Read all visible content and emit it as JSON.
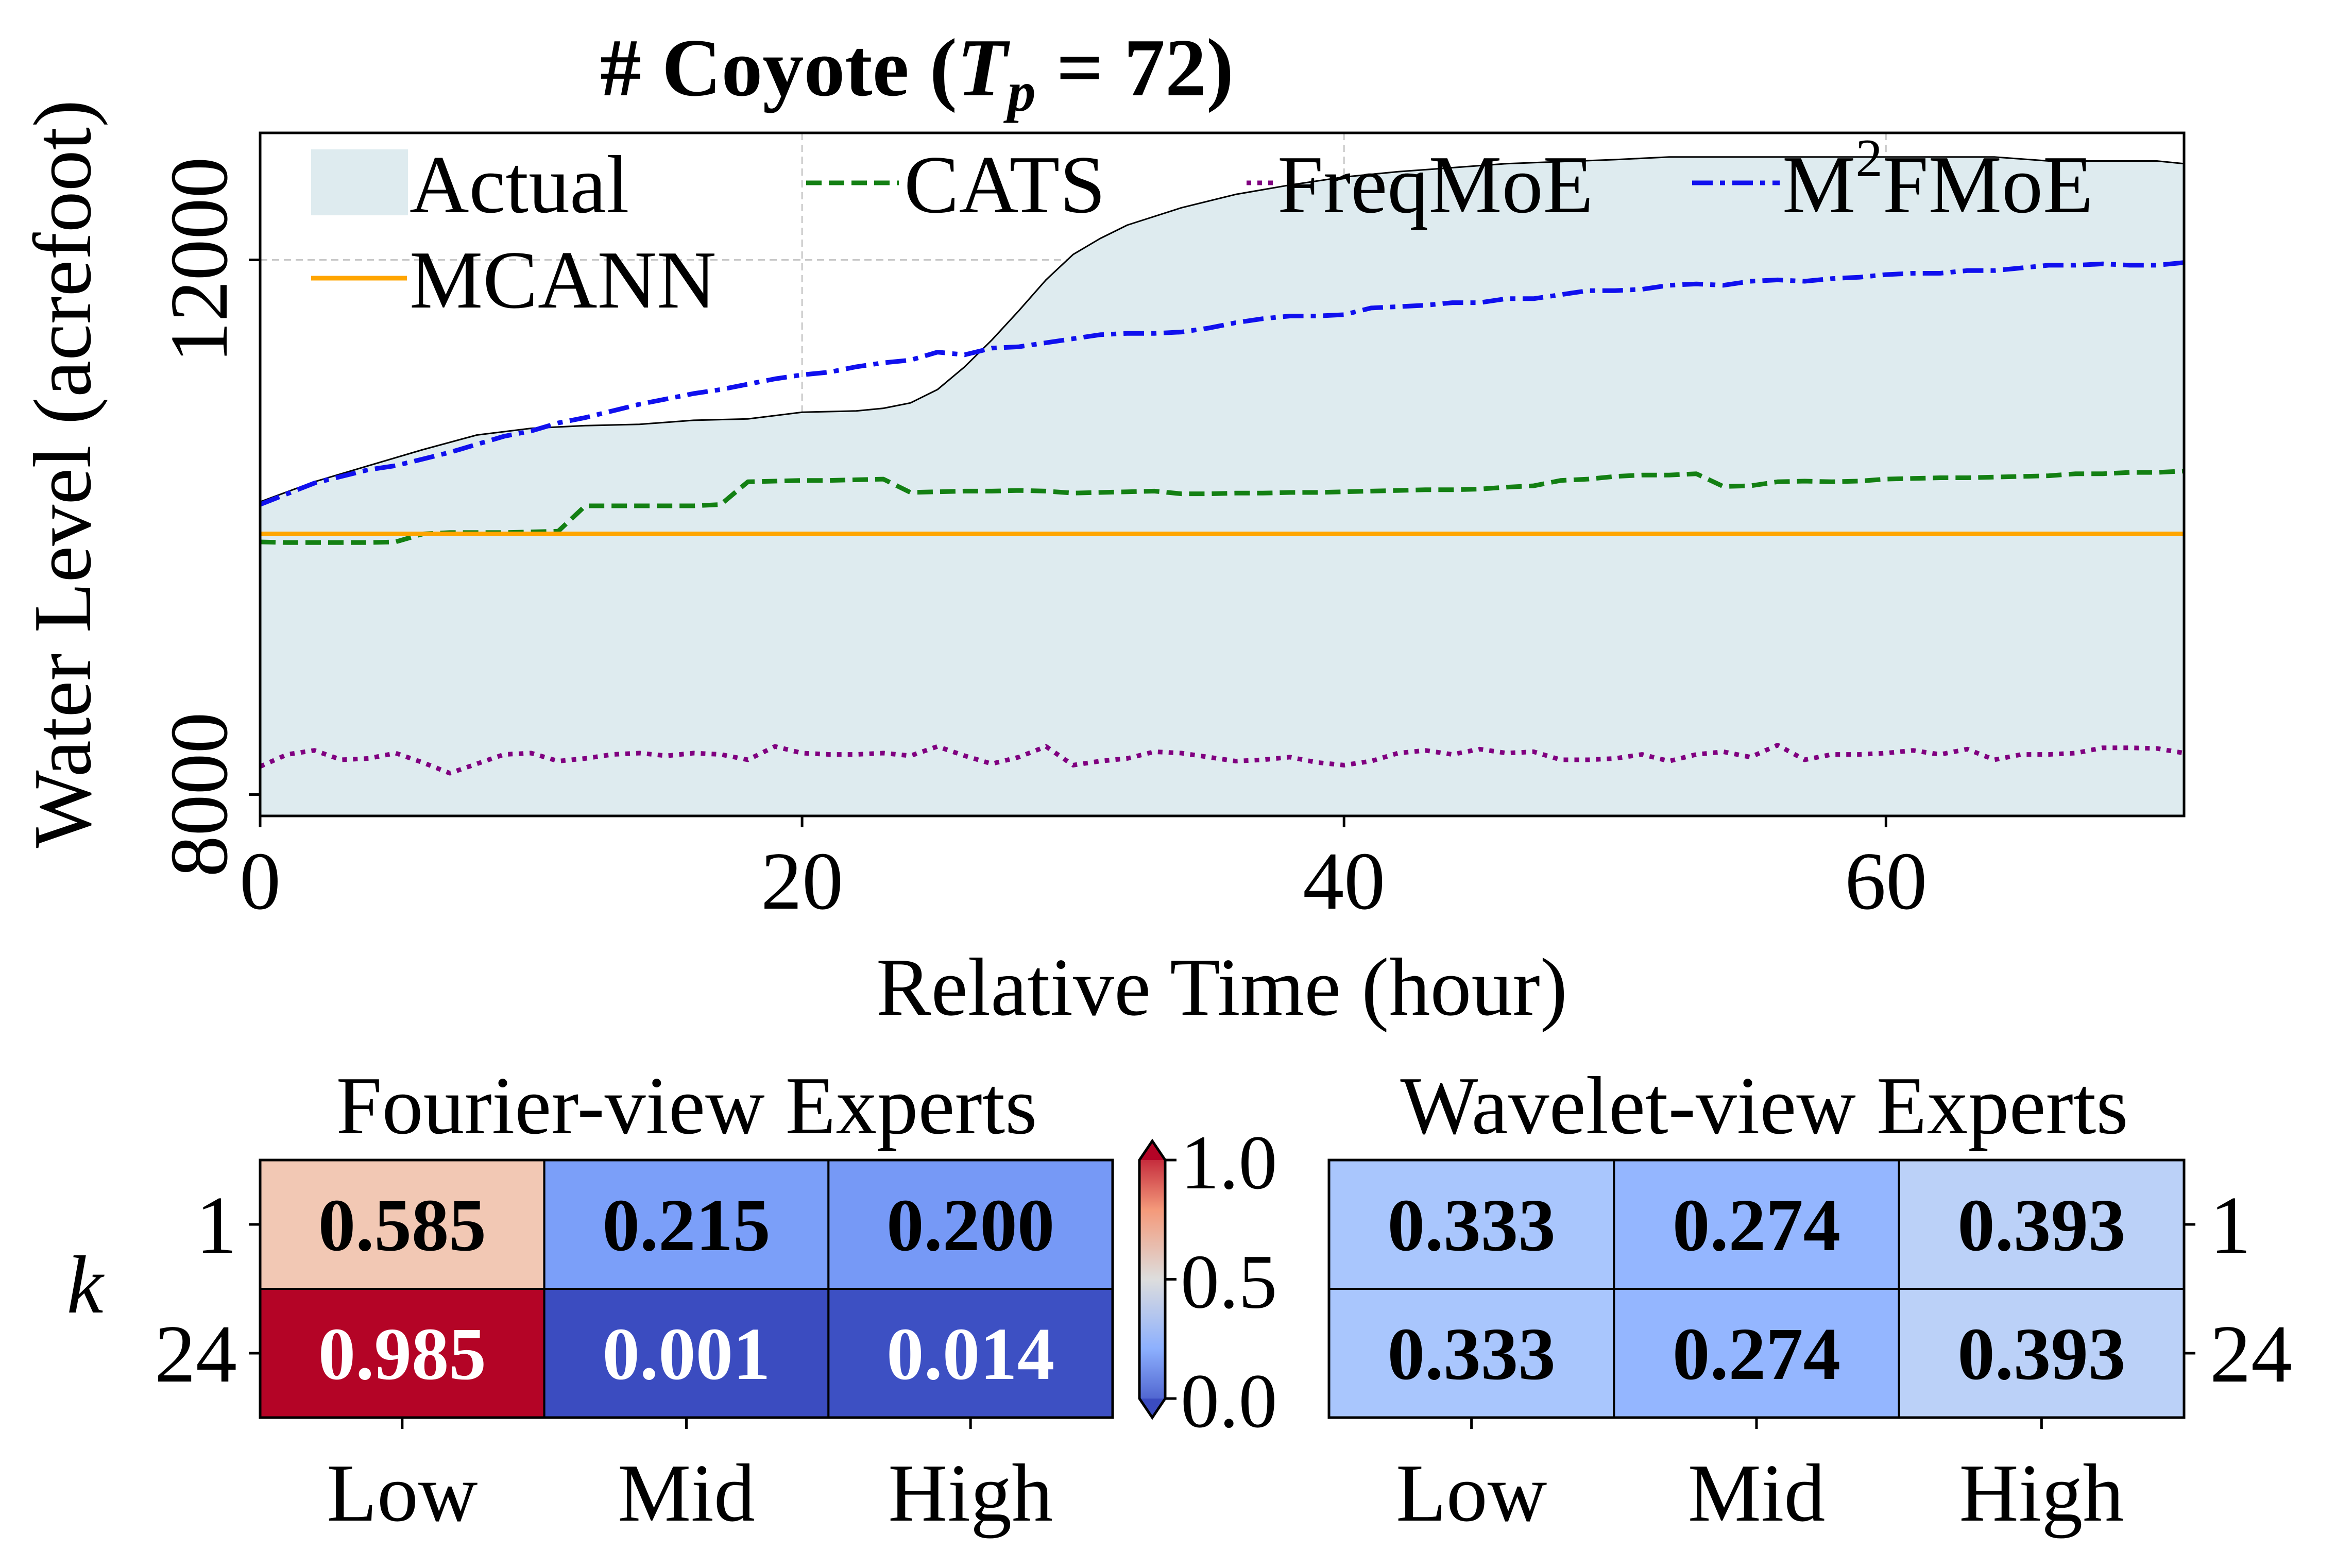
{
  "chart_data": [
    {
      "type": "line",
      "title_prefix": "# Coyote (",
      "title_T": "T",
      "title_sub": "p",
      "title_suffix": " = 72)",
      "xlabel": "Relative Time (hour)",
      "ylabel": "Water Level (acrefoot)",
      "xlim": [
        0,
        71
      ],
      "ylim": [
        7840,
        12950
      ],
      "xticks": [
        0,
        20,
        40,
        60
      ],
      "yticks": [
        8000,
        12000
      ],
      "grid": true,
      "legend_position": "top-left",
      "legend": [
        {
          "name": "Actual",
          "style": "area",
          "color": "#deebef"
        },
        {
          "name": "CATS",
          "style": "dashed",
          "color": "#138013"
        },
        {
          "name": "FreqMoE",
          "style": "dotted",
          "color": "#800080"
        },
        {
          "name": "M",
          "sup": "2",
          "name_tail": "FMoE",
          "style": "dashdot",
          "color": "#1010ee"
        },
        {
          "name": "MCANN",
          "style": "solid",
          "color": "#ffa500"
        }
      ],
      "series": [
        {
          "name": "Actual",
          "x": [
            0,
            2,
            4,
            6,
            8,
            10,
            12,
            14,
            16,
            18,
            20,
            22,
            23,
            24,
            25,
            26,
            27,
            28,
            29,
            30,
            31,
            32,
            34,
            36,
            38,
            40,
            42,
            44,
            46,
            48,
            50,
            52,
            54,
            56,
            58,
            60,
            62,
            64,
            66,
            68,
            70,
            71
          ],
          "y": [
            10190,
            10340,
            10460,
            10580,
            10690,
            10740,
            10760,
            10770,
            10800,
            10810,
            10860,
            10870,
            10890,
            10930,
            11030,
            11200,
            11400,
            11620,
            11850,
            12040,
            12160,
            12260,
            12390,
            12490,
            12560,
            12620,
            12660,
            12690,
            12720,
            12735,
            12750,
            12770,
            12770,
            12770,
            12770,
            12770,
            12770,
            12770,
            12740,
            12740,
            12740,
            12720
          ]
        },
        {
          "name": "CATS",
          "x": [
            0,
            1,
            2,
            3,
            4,
            5,
            6,
            7,
            8,
            9,
            10,
            11,
            12,
            13,
            14,
            15,
            16,
            17,
            18,
            19,
            20,
            21,
            22,
            23,
            24,
            25,
            26,
            27,
            28,
            29,
            30,
            31,
            32,
            33,
            34,
            35,
            36,
            37,
            38,
            39,
            40,
            41,
            42,
            43,
            44,
            45,
            46,
            47,
            48,
            49,
            50,
            51,
            52,
            53,
            54,
            55,
            56,
            57,
            58,
            59,
            60,
            61,
            62,
            63,
            64,
            65,
            66,
            67,
            68,
            69,
            70,
            71
          ],
          "y": [
            9890,
            9885,
            9885,
            9885,
            9885,
            9890,
            9950,
            9960,
            9960,
            9960,
            9965,
            9970,
            10160,
            10160,
            10160,
            10160,
            10160,
            10170,
            10340,
            10345,
            10350,
            10350,
            10355,
            10360,
            10260,
            10265,
            10270,
            10270,
            10275,
            10270,
            10255,
            10260,
            10265,
            10270,
            10250,
            10250,
            10255,
            10255,
            10260,
            10260,
            10265,
            10270,
            10275,
            10280,
            10280,
            10285,
            10300,
            10310,
            10350,
            10360,
            10380,
            10390,
            10390,
            10400,
            10305,
            10310,
            10340,
            10345,
            10340,
            10345,
            10360,
            10365,
            10370,
            10370,
            10375,
            10380,
            10385,
            10400,
            10400,
            10410,
            10410,
            10420
          ]
        },
        {
          "name": "FreqMoE",
          "x": [
            0,
            1,
            2,
            3,
            4,
            5,
            6,
            7,
            8,
            9,
            10,
            11,
            12,
            13,
            14,
            15,
            16,
            17,
            18,
            19,
            20,
            21,
            22,
            23,
            24,
            25,
            26,
            27,
            28,
            29,
            30,
            31,
            32,
            33,
            34,
            35,
            36,
            37,
            38,
            39,
            40,
            41,
            42,
            43,
            44,
            45,
            46,
            47,
            48,
            49,
            50,
            51,
            52,
            53,
            54,
            55,
            56,
            57,
            58,
            59,
            60,
            61,
            62,
            63,
            64,
            65,
            66,
            67,
            68,
            69,
            70,
            71
          ],
          "y": [
            8210,
            8300,
            8330,
            8260,
            8270,
            8310,
            8240,
            8160,
            8230,
            8300,
            8310,
            8250,
            8270,
            8300,
            8310,
            8290,
            8310,
            8300,
            8260,
            8360,
            8310,
            8300,
            8300,
            8310,
            8290,
            8360,
            8290,
            8230,
            8280,
            8360,
            8220,
            8250,
            8270,
            8320,
            8310,
            8280,
            8250,
            8260,
            8280,
            8240,
            8220,
            8250,
            8310,
            8330,
            8300,
            8340,
            8310,
            8320,
            8260,
            8260,
            8270,
            8300,
            8250,
            8300,
            8320,
            8280,
            8370,
            8260,
            8300,
            8300,
            8310,
            8330,
            8300,
            8340,
            8260,
            8300,
            8300,
            8310,
            8350,
            8350,
            8345,
            8310
          ]
        },
        {
          "name": "M2FMoE",
          "x": [
            0,
            1,
            2,
            3,
            4,
            5,
            6,
            7,
            8,
            9,
            10,
            11,
            12,
            13,
            14,
            15,
            16,
            17,
            18,
            19,
            20,
            21,
            22,
            23,
            24,
            25,
            26,
            27,
            28,
            29,
            30,
            31,
            32,
            33,
            34,
            35,
            36,
            37,
            38,
            39,
            40,
            41,
            42,
            43,
            44,
            45,
            46,
            47,
            48,
            49,
            50,
            51,
            52,
            53,
            54,
            55,
            56,
            57,
            58,
            59,
            60,
            61,
            62,
            63,
            64,
            65,
            66,
            67,
            68,
            69,
            70,
            71
          ],
          "y": [
            10170,
            10250,
            10330,
            10380,
            10430,
            10460,
            10510,
            10560,
            10620,
            10680,
            10720,
            10780,
            10820,
            10870,
            10920,
            10960,
            11000,
            11030,
            11070,
            11110,
            11140,
            11160,
            11200,
            11230,
            11250,
            11310,
            11290,
            11340,
            11350,
            11380,
            11410,
            11440,
            11450,
            11450,
            11460,
            11490,
            11530,
            11560,
            11580,
            11580,
            11590,
            11640,
            11650,
            11660,
            11680,
            11680,
            11710,
            11710,
            11740,
            11770,
            11770,
            11780,
            11810,
            11820,
            11810,
            11840,
            11850,
            11840,
            11860,
            11870,
            11890,
            11900,
            11900,
            11920,
            11920,
            11940,
            11960,
            11960,
            11970,
            11960,
            11960,
            11980
          ]
        },
        {
          "name": "MCANN",
          "x": [
            0,
            71
          ],
          "y": [
            9950,
            9950
          ]
        }
      ]
    },
    {
      "type": "heatmap",
      "title": "Fourier-view Experts",
      "ylabel": "k",
      "row_labels": [
        "1",
        "24"
      ],
      "col_labels": [
        "Low",
        "Mid",
        "High"
      ],
      "values": [
        [
          "0.585",
          "0.215",
          "0.200"
        ],
        [
          "0.985",
          "0.001",
          "0.014"
        ]
      ],
      "cell_colors": [
        [
          "#f2c8b4",
          "#7b9ff9",
          "#7699f6"
        ],
        [
          "#b40426",
          "#3b4cc0",
          "#3d50c3"
        ]
      ],
      "text_colors": [
        [
          "#000000",
          "#000000",
          "#000000"
        ],
        [
          "#ffffff",
          "#ffffff",
          "#ffffff"
        ]
      ]
    },
    {
      "type": "heatmap",
      "title": "Wavelet-view Experts",
      "row_labels": [
        "1",
        "24"
      ],
      "col_labels": [
        "Low",
        "Mid",
        "High"
      ],
      "values": [
        [
          "0.333",
          "0.274",
          "0.393"
        ],
        [
          "0.333",
          "0.274",
          "0.393"
        ]
      ],
      "cell_colors": [
        [
          "#a9c6fd",
          "#94b6ff",
          "#bbd1f8"
        ],
        [
          "#a9c6fd",
          "#94b6ff",
          "#bbd1f8"
        ]
      ],
      "text_colors": [
        [
          "#000000",
          "#000000",
          "#000000"
        ],
        [
          "#000000",
          "#000000",
          "#000000"
        ]
      ]
    },
    {
      "type": "colorbar",
      "colormap": "coolwarm",
      "range": [
        0.0,
        1.0
      ],
      "tick_labels": [
        "0.0",
        "0.5",
        "1.0"
      ],
      "colors": [
        "#3b4cc0",
        "#dddddd",
        "#b40426"
      ]
    }
  ]
}
